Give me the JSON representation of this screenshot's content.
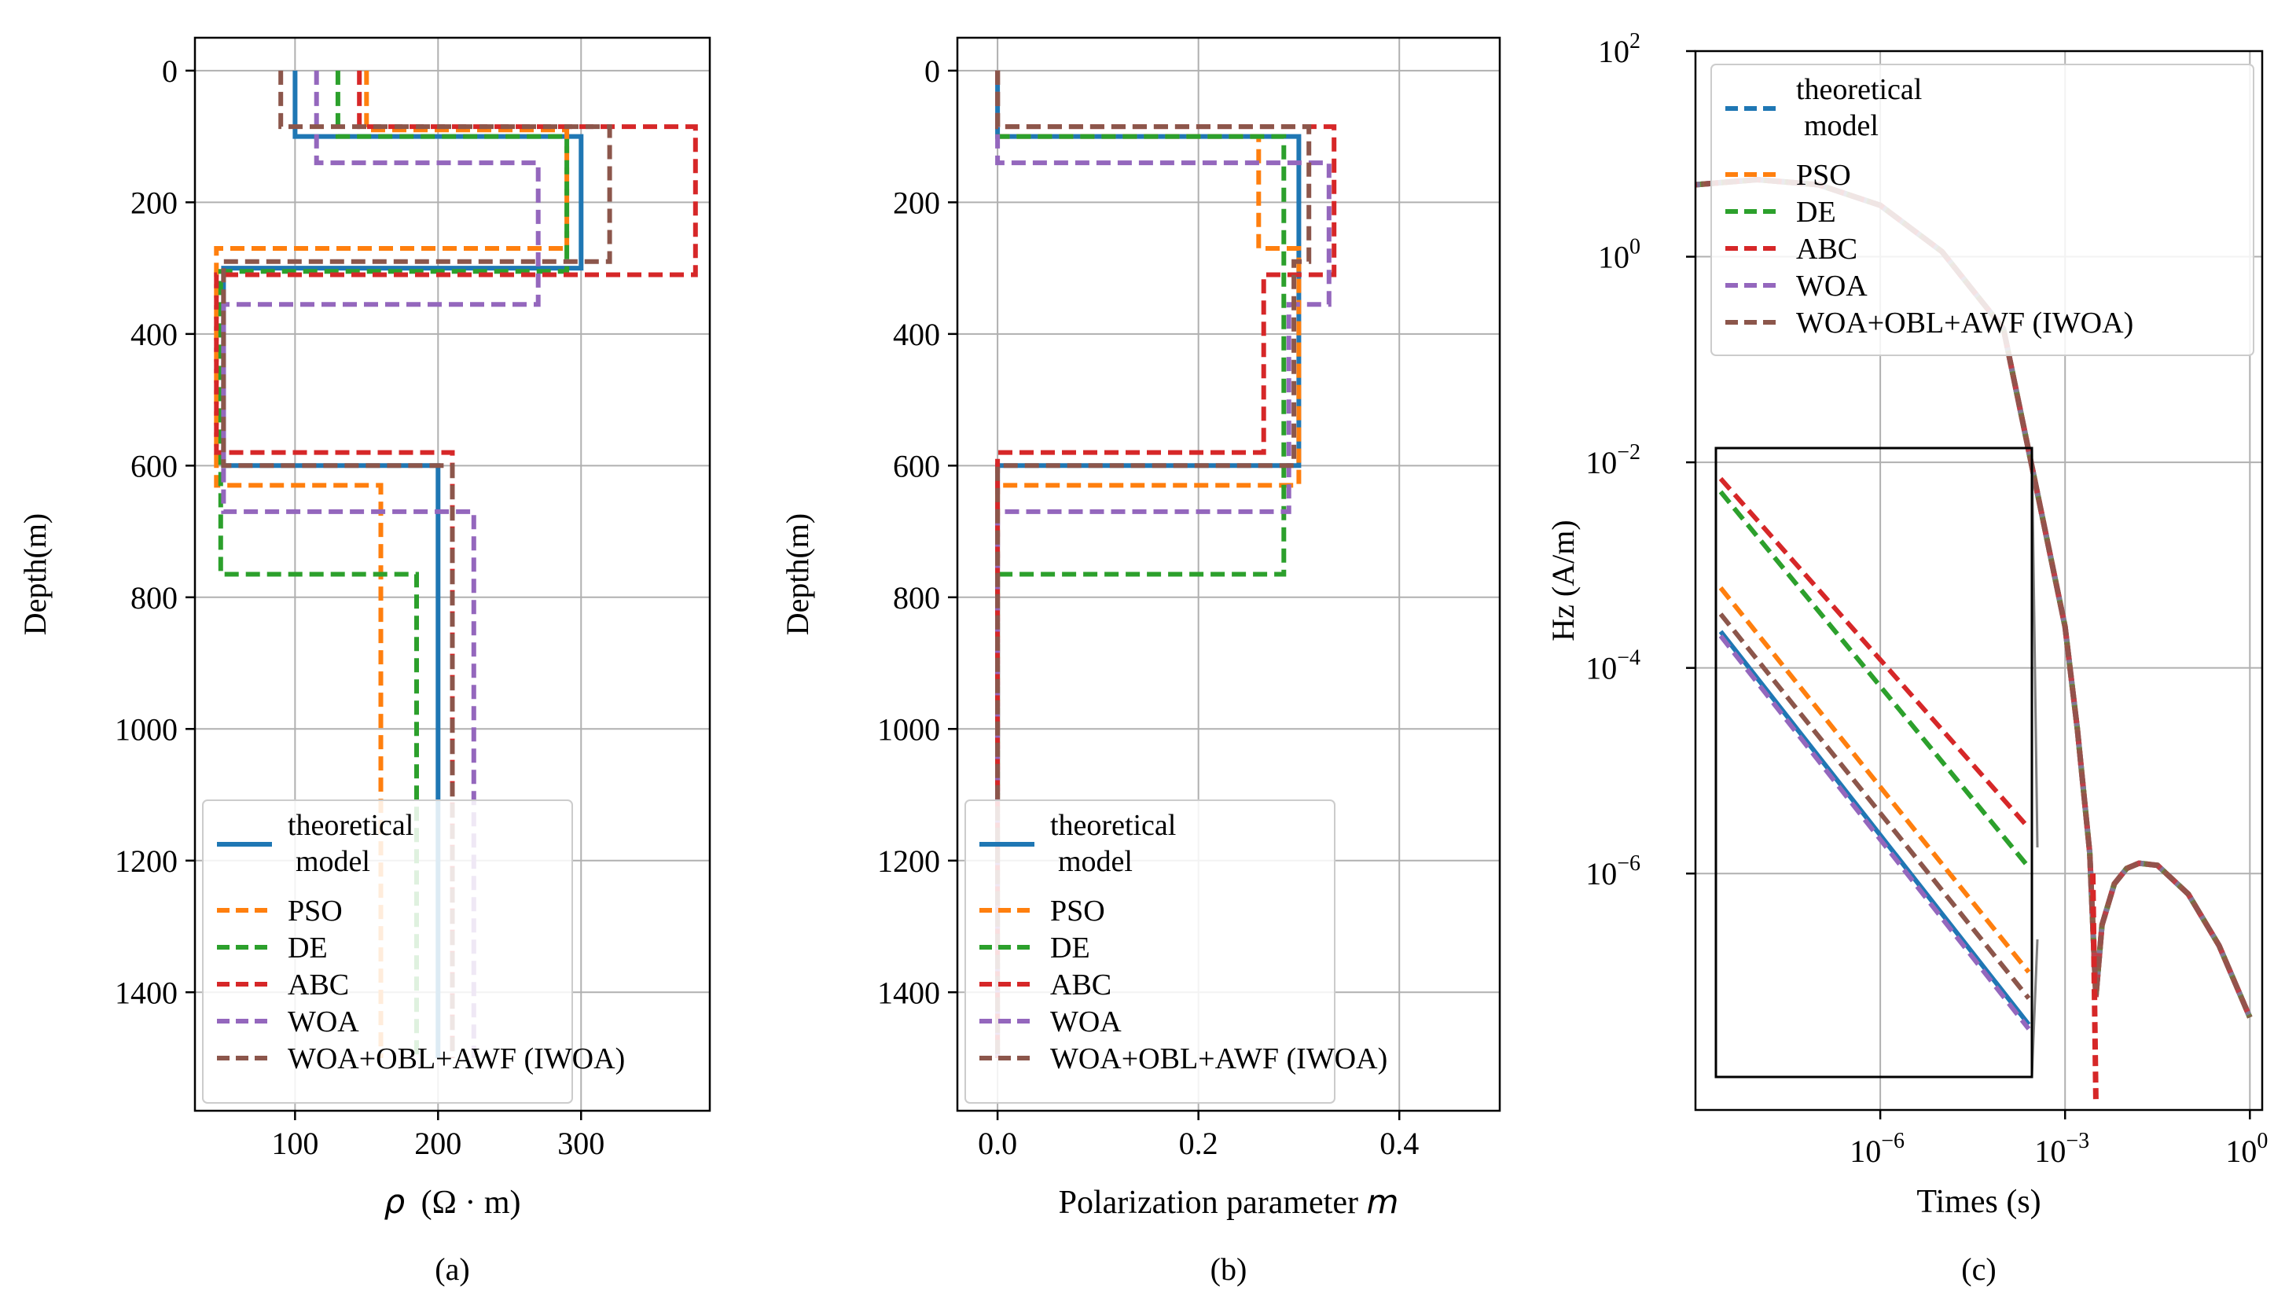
{
  "chart_data": [
    {
      "type": "line",
      "panel_label": "(a)",
      "xlabel_var": "ρ",
      "xlabel_unit": "(Ω · m)",
      "ylabel": "Depth(m)",
      "xlim": [
        30,
        390
      ],
      "ylim": [
        1580,
        -50
      ],
      "xticks": [
        "100",
        "200",
        "300"
      ],
      "xtick_values": [
        100,
        200,
        300
      ],
      "yticks": [
        "0",
        "200",
        "400",
        "600",
        "800",
        "1000",
        "1200",
        "1400"
      ],
      "ytick_values": [
        0,
        200,
        400,
        600,
        800,
        1000,
        1200,
        1400
      ],
      "grid": true,
      "legend_position": "lower right",
      "series": [
        {
          "name": "theoretical model",
          "color": "#1f77b4",
          "dash": "solid",
          "points": [
            [
              100,
              0
            ],
            [
              100,
              100
            ],
            [
              300,
              100
            ],
            [
              300,
              300
            ],
            [
              50,
              300
            ],
            [
              50,
              600
            ],
            [
              200,
              600
            ],
            [
              200,
              1500
            ]
          ]
        },
        {
          "name": "PSO",
          "color": "#ff7f0e",
          "dash": "dashed",
          "points": [
            [
              150,
              0
            ],
            [
              150,
              90
            ],
            [
              290,
              90
            ],
            [
              290,
              270
            ],
            [
              45,
              270
            ],
            [
              45,
              630
            ],
            [
              160,
              630
            ],
            [
              160,
              1500
            ]
          ]
        },
        {
          "name": "DE",
          "color": "#2ca02c",
          "dash": "dashed",
          "points": [
            [
              130,
              0
            ],
            [
              130,
              100
            ],
            [
              290,
              100
            ],
            [
              290,
              305
            ],
            [
              48,
              305
            ],
            [
              48,
              765
            ],
            [
              185,
              765
            ],
            [
              185,
              1500
            ]
          ]
        },
        {
          "name": "ABC",
          "color": "#d62728",
          "dash": "dashed",
          "points": [
            [
              145,
              0
            ],
            [
              145,
              85
            ],
            [
              380,
              85
            ],
            [
              380,
              310
            ],
            [
              45,
              310
            ],
            [
              45,
              580
            ],
            [
              210,
              580
            ],
            [
              210,
              1500
            ]
          ]
        },
        {
          "name": "WOA",
          "color": "#9467bd",
          "dash": "dashed",
          "points": [
            [
              115,
              0
            ],
            [
              115,
              140
            ],
            [
              270,
              140
            ],
            [
              270,
              355
            ],
            [
              50,
              355
            ],
            [
              50,
              670
            ],
            [
              225,
              670
            ],
            [
              225,
              1500
            ]
          ]
        },
        {
          "name": "WOA+OBL+AWF (IWOA)",
          "color": "#8c564b",
          "dash": "dashed",
          "points": [
            [
              90,
              0
            ],
            [
              90,
              85
            ],
            [
              320,
              85
            ],
            [
              320,
              290
            ],
            [
              50,
              290
            ],
            [
              50,
              600
            ],
            [
              210,
              600
            ],
            [
              210,
              1500
            ]
          ]
        }
      ]
    },
    {
      "type": "line",
      "panel_label": "(b)",
      "xlabel_text": "Polarization parameter ",
      "xlabel_var": "m",
      "ylabel": "Depth(m)",
      "xlim": [
        -0.04,
        0.5
      ],
      "ylim": [
        1580,
        -50
      ],
      "xticks": [
        "0.0",
        "0.2",
        "0.4"
      ],
      "xtick_values": [
        0.0,
        0.2,
        0.4
      ],
      "yticks": [
        "0",
        "200",
        "400",
        "600",
        "800",
        "1000",
        "1200",
        "1400"
      ],
      "ytick_values": [
        0,
        200,
        400,
        600,
        800,
        1000,
        1200,
        1400
      ],
      "grid": true,
      "legend_position": "lower right",
      "series": [
        {
          "name": "theoretical model",
          "color": "#1f77b4",
          "dash": "solid",
          "points": [
            [
              0,
              0
            ],
            [
              0,
              100
            ],
            [
              0.3,
              100
            ],
            [
              0.3,
              600
            ],
            [
              0,
              600
            ],
            [
              0,
              1100
            ]
          ]
        },
        {
          "name": "PSO",
          "color": "#ff7f0e",
          "dash": "dashed",
          "points": [
            [
              0,
              0
            ],
            [
              0,
              100
            ],
            [
              0.26,
              100
            ],
            [
              0.26,
              270
            ],
            [
              0.3,
              270
            ],
            [
              0.3,
              630
            ],
            [
              0,
              630
            ],
            [
              0,
              1500
            ]
          ]
        },
        {
          "name": "DE",
          "color": "#2ca02c",
          "dash": "dashed",
          "points": [
            [
              0,
              0
            ],
            [
              0,
              100
            ],
            [
              0.285,
              100
            ],
            [
              0.285,
              765
            ],
            [
              0,
              765
            ],
            [
              0,
              1500
            ]
          ]
        },
        {
          "name": "ABC",
          "color": "#d62728",
          "dash": "dashed",
          "points": [
            [
              0,
              0
            ],
            [
              0,
              85
            ],
            [
              0.335,
              85
            ],
            [
              0.335,
              310
            ],
            [
              0.265,
              310
            ],
            [
              0.265,
              580
            ],
            [
              0,
              580
            ],
            [
              0,
              1500
            ]
          ]
        },
        {
          "name": "WOA",
          "color": "#9467bd",
          "dash": "dashed",
          "points": [
            [
              0,
              0
            ],
            [
              0,
              140
            ],
            [
              0.33,
              140
            ],
            [
              0.33,
              355
            ],
            [
              0.29,
              355
            ],
            [
              0.29,
              670
            ],
            [
              0,
              670
            ],
            [
              0,
              1500
            ]
          ]
        },
        {
          "name": "WOA+OBL+AWF (IWOA)",
          "color": "#8c564b",
          "dash": "dashed",
          "points": [
            [
              0,
              0
            ],
            [
              0,
              85
            ],
            [
              0.31,
              85
            ],
            [
              0.31,
              290
            ],
            [
              0.295,
              290
            ],
            [
              0.295,
              600
            ],
            [
              0,
              600
            ],
            [
              0,
              1500
            ]
          ]
        }
      ]
    },
    {
      "type": "line",
      "panel_label": "(c)",
      "xlabel": "Times (s)",
      "ylabel": "Hz (A/m)",
      "xscale": "log",
      "yscale": "log",
      "xlim_log10": [
        -9,
        0.2
      ],
      "ylim_log10": [
        -8.3,
        2
      ],
      "xticks": [
        {
          "base": "10",
          "exp": "−6",
          "val": -6
        },
        {
          "base": "10",
          "exp": "−3",
          "val": -3
        },
        {
          "base": "10",
          "exp": "0",
          "val": 0
        }
      ],
      "yticks": [
        {
          "base": "10",
          "exp": "2",
          "val": 2
        },
        {
          "base": "10",
          "exp": "0",
          "val": 0
        },
        {
          "base": "10",
          "exp": "−2",
          "val": -2
        },
        {
          "base": "10",
          "exp": "−4",
          "val": -4
        },
        {
          "base": "10",
          "exp": "−6",
          "val": -6
        }
      ],
      "grid": true,
      "legend_position": "upper right",
      "main_curve_log10": [
        [
          -9,
          0.7
        ],
        [
          -8,
          0.75
        ],
        [
          -7,
          0.7
        ],
        [
          -6,
          0.5
        ],
        [
          -5,
          0.05
        ],
        [
          -4,
          -0.7
        ],
        [
          -3,
          -3.6
        ],
        [
          -2.8,
          -4.6
        ],
        [
          -2.6,
          -5.8
        ],
        [
          -2.5,
          -7.2
        ],
        [
          -2.4,
          -6.5
        ],
        [
          -2.2,
          -6.1
        ],
        [
          -2,
          -5.95
        ],
        [
          -1.8,
          -5.9
        ],
        [
          -1.5,
          -5.92
        ],
        [
          -1,
          -6.2
        ],
        [
          -0.5,
          -6.7
        ],
        [
          0,
          -7.4
        ]
      ],
      "inset_series_log10": [
        {
          "name": "theoretical model",
          "color": "#1f77b4",
          "start": -3.3,
          "end": -7.8
        },
        {
          "name": "PSO",
          "color": "#ff7f0e",
          "start": -2.8,
          "end": -7.2
        },
        {
          "name": "DE",
          "color": "#2ca02c",
          "start": -1.7,
          "end": -6.0
        },
        {
          "name": "ABC",
          "color": "#d62728",
          "start": -1.55,
          "end": -5.55
        },
        {
          "name": "WOA",
          "color": "#9467bd",
          "start": -3.35,
          "end": -7.85
        },
        {
          "name": "WOA+OBL+AWF (IWOA)",
          "color": "#8c564b",
          "start": -3.1,
          "end": -7.5
        }
      ]
    }
  ],
  "legend_names": [
    "theoretical",
    "model",
    "PSO",
    "DE",
    "ABC",
    "WOA",
    "WOA+OBL+AWF (IWOA)"
  ]
}
